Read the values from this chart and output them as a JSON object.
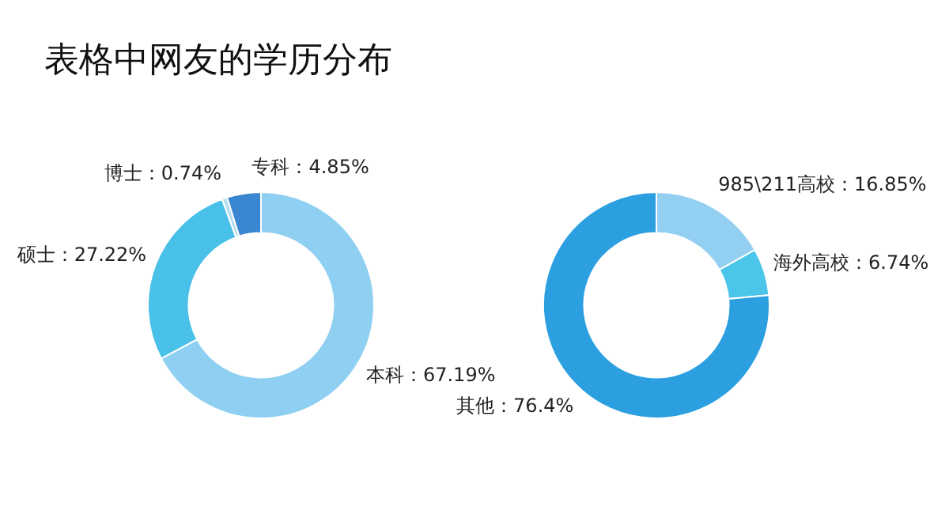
{
  "chart_data": [
    {
      "type": "donut",
      "title": "表格中网友的学历分布",
      "categories": [
        "本科",
        "硕士",
        "博士",
        "专科"
      ],
      "values": [
        67.19,
        27.22,
        0.74,
        4.85
      ],
      "value_labels": [
        "67.19%",
        "27.22%",
        "0.74%",
        "4.85%"
      ],
      "colors": [
        "#8ecff2",
        "#48c0e8",
        "#b5ddf0",
        "#3a86d0"
      ],
      "legend": false
    },
    {
      "type": "donut",
      "categories": [
        "985\\211高校",
        "海外高校",
        "其他"
      ],
      "values": [
        16.85,
        6.74,
        76.4
      ],
      "value_labels": [
        "16.85%",
        "6.74%",
        "76.4%"
      ],
      "colors": [
        "#93cff0",
        "#4bc5ea",
        "#2b9fe0"
      ],
      "legend": false
    }
  ]
}
